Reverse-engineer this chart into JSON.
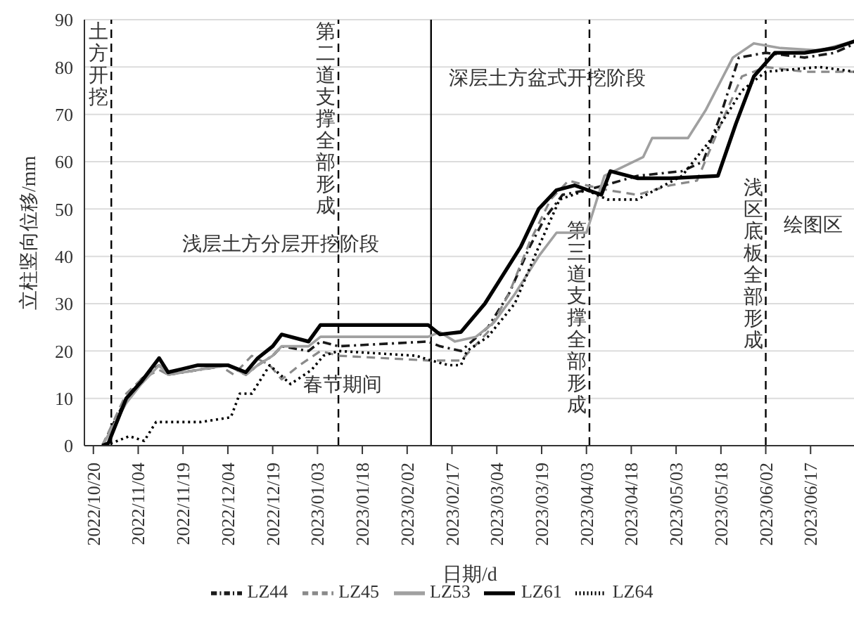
{
  "chart_data": {
    "type": "line",
    "xlabel": "日期/d",
    "ylabel": "立柱竖向位移/mm",
    "xlim": [
      "2022-10-17",
      "2023-07-02"
    ],
    "ylim": [
      0,
      90
    ],
    "yticks": [
      0,
      10,
      20,
      30,
      40,
      50,
      60,
      70,
      80,
      90
    ],
    "xticks": [
      {
        "value": "2022-10-20",
        "label": "2022/10/20"
      },
      {
        "value": "2022-11-04",
        "label": "2022/11/04"
      },
      {
        "value": "2022-11-19",
        "label": "2022/11/19"
      },
      {
        "value": "2022-12-04",
        "label": "2022/12/04"
      },
      {
        "value": "2022-12-19",
        "label": "2022/12/19"
      },
      {
        "value": "2023-01-03",
        "label": "2023/01/03"
      },
      {
        "value": "2023-01-18",
        "label": "2023/01/18"
      },
      {
        "value": "2023-02-02",
        "label": "2023/02/02"
      },
      {
        "value": "2023-02-17",
        "label": "2023/02/17"
      },
      {
        "value": "2023-03-04",
        "label": "2023/03/04"
      },
      {
        "value": "2023-03-19",
        "label": "2023/03/19"
      },
      {
        "value": "2023-04-03",
        "label": "2023/04/03"
      },
      {
        "value": "2023-04-18",
        "label": "2023/04/18"
      },
      {
        "value": "2023-05-03",
        "label": "2023/05/03"
      },
      {
        "value": "2023-05-18",
        "label": "2023/05/18"
      },
      {
        "value": "2023-06-02",
        "label": "2023/06/02"
      },
      {
        "value": "2023-06-17",
        "label": "2023/06/17"
      }
    ],
    "grid": "y",
    "legend": "bottom",
    "marker": "none",
    "series": [
      {
        "name": "LZ44",
        "color": "#1a1a1a",
        "line_style": "dashdot",
        "x": [
          "2022-10-23",
          "2022-10-31",
          "2022-11-05",
          "2022-11-11",
          "2022-11-14",
          "2022-11-24",
          "2022-12-04",
          "2022-12-10",
          "2022-12-14",
          "2022-12-19",
          "2022-12-22",
          "2022-12-31",
          "2023-01-04",
          "2023-01-10",
          "2023-02-09",
          "2023-02-13",
          "2023-02-20",
          "2023-03-01",
          "2023-03-08",
          "2023-03-15",
          "2023-03-20",
          "2023-03-26",
          "2023-04-03",
          "2023-04-09",
          "2023-04-20",
          "2023-05-05",
          "2023-05-12",
          "2023-05-18",
          "2023-05-24",
          "2023-06-02",
          "2023-06-15",
          "2023-06-25",
          "2023-07-02"
        ],
        "values": [
          0,
          10,
          14,
          17,
          15,
          16,
          17,
          15,
          17,
          19,
          21,
          20,
          22,
          21,
          22,
          21,
          20,
          25,
          32,
          42,
          48,
          53,
          54,
          55,
          57,
          58,
          60,
          70,
          82,
          83,
          82,
          83,
          85
        ]
      },
      {
        "name": "LZ45",
        "color": "#8a8a8a",
        "line_style": "dashed",
        "x": [
          "2022-10-23",
          "2022-10-31",
          "2022-11-05",
          "2022-11-11",
          "2022-11-14",
          "2022-11-24",
          "2022-12-01",
          "2022-12-06",
          "2022-12-12",
          "2022-12-18",
          "2022-12-22",
          "2022-12-28",
          "2023-01-04",
          "2023-01-10",
          "2023-02-09",
          "2023-02-13",
          "2023-02-20",
          "2023-03-01",
          "2023-03-08",
          "2023-03-15",
          "2023-03-22",
          "2023-03-28",
          "2023-04-03",
          "2023-04-10",
          "2023-04-20",
          "2023-05-01",
          "2023-05-10",
          "2023-05-18",
          "2023-05-25",
          "2023-06-02",
          "2023-06-15",
          "2023-07-02"
        ],
        "values": [
          0,
          11,
          14,
          16,
          15,
          16,
          17,
          15,
          19,
          17,
          14,
          17,
          20,
          19,
          18,
          18,
          18,
          24,
          32,
          43,
          52,
          56,
          55,
          54,
          53,
          55,
          56,
          68,
          78,
          80,
          79,
          79
        ]
      },
      {
        "name": "LZ53",
        "color": "#a0a0a0",
        "line_style": "solid",
        "x": [
          "2022-10-23",
          "2022-10-31",
          "2022-11-05",
          "2022-11-11",
          "2022-11-14",
          "2022-11-24",
          "2022-12-04",
          "2022-12-10",
          "2022-12-14",
          "2022-12-19",
          "2022-12-22",
          "2022-12-31",
          "2023-01-04",
          "2023-02-09",
          "2023-02-13",
          "2023-02-18",
          "2023-02-25",
          "2023-03-03",
          "2023-03-10",
          "2023-03-18",
          "2023-03-24",
          "2023-04-03",
          "2023-04-09",
          "2023-04-22",
          "2023-04-25",
          "2023-05-07",
          "2023-05-13",
          "2023-05-22",
          "2023-05-29",
          "2023-06-07",
          "2023-06-20",
          "2023-07-02"
        ],
        "values": [
          0,
          9,
          13,
          17,
          15,
          16,
          17,
          15,
          17,
          19,
          21,
          21,
          23,
          23,
          24,
          22,
          23,
          26,
          32,
          40,
          45,
          45,
          57,
          61,
          65,
          65,
          71,
          82,
          85,
          84,
          83.5,
          85.5
        ]
      },
      {
        "name": "LZ61",
        "color": "#000000",
        "line_style": "solid",
        "x": [
          "2022-10-23",
          "2022-10-25",
          "2022-10-31",
          "2022-11-05",
          "2022-11-11",
          "2022-11-14",
          "2022-11-24",
          "2022-12-04",
          "2022-12-10",
          "2022-12-14",
          "2022-12-19",
          "2022-12-22",
          "2022-12-31",
          "2023-01-04",
          "2023-02-09",
          "2023-02-13",
          "2023-02-20",
          "2023-02-28",
          "2023-03-05",
          "2023-03-12",
          "2023-03-18",
          "2023-03-24",
          "2023-03-30",
          "2023-04-08",
          "2023-04-11",
          "2023-04-20",
          "2023-05-01",
          "2023-05-17",
          "2023-05-23",
          "2023-05-29",
          "2023-06-05",
          "2023-06-15",
          "2023-06-25",
          "2023-07-02"
        ],
        "values": [
          0,
          0.5,
          10,
          13.5,
          18.5,
          15.5,
          17,
          17,
          15.5,
          18.5,
          21,
          23.5,
          22,
          25.5,
          25.5,
          23.5,
          24,
          30,
          35,
          42,
          50,
          54,
          55,
          53,
          58,
          56.5,
          56.5,
          57,
          68,
          78,
          83,
          83,
          84,
          85.5
        ]
      },
      {
        "name": "LZ64",
        "color": "#000000",
        "line_style": "dotted",
        "x": [
          "2022-10-24",
          "2022-11-01",
          "2022-11-06",
          "2022-11-10",
          "2022-11-25",
          "2022-12-05",
          "2022-12-08",
          "2022-12-12",
          "2022-12-18",
          "2022-12-25",
          "2023-01-01",
          "2023-01-05",
          "2023-01-10",
          "2023-02-05",
          "2023-02-10",
          "2023-02-16",
          "2023-02-20",
          "2023-02-22",
          "2023-03-01",
          "2023-03-10",
          "2023-03-18",
          "2023-03-25",
          "2023-04-03",
          "2023-04-10",
          "2023-04-20",
          "2023-05-05",
          "2023-05-15",
          "2023-05-25",
          "2023-06-02",
          "2023-06-20",
          "2023-07-02"
        ],
        "values": [
          0,
          2,
          1,
          5,
          5,
          6,
          11,
          11,
          17,
          13,
          16,
          19,
          20,
          19,
          18,
          17,
          17,
          20,
          23,
          30,
          42,
          52,
          54,
          52,
          52,
          57,
          65,
          75,
          79,
          80,
          79
        ]
      }
    ],
    "ref_lines": [
      {
        "axis": "x",
        "value": "2022-10-26",
        "label": "土方开挖",
        "line_style": "dashed"
      },
      {
        "axis": "x",
        "value": "2023-01-10",
        "label": "第二道支撑全部形成",
        "line_style": "dashed"
      },
      {
        "axis": "x",
        "value": "2023-02-10",
        "line_style": "solid"
      },
      {
        "axis": "x",
        "value": "2023-04-04",
        "label": "第三道支撑全部形成",
        "line_style": "dashed"
      },
      {
        "axis": "x",
        "value": "2023-06-02",
        "label": "浅区底板全部形成",
        "line_style": "dashed"
      }
    ],
    "annotations": [
      "浅层土方分层开挖阶段",
      "春节期间",
      "深层土方盆式开挖阶段",
      "绘图区"
    ]
  }
}
